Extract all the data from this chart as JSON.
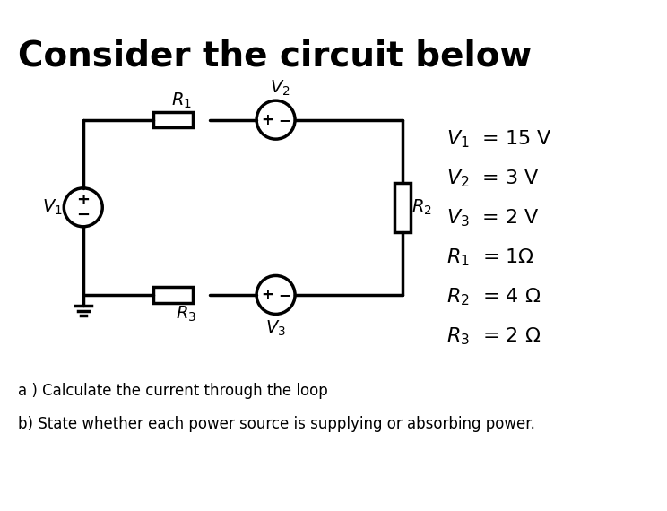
{
  "title": "Consider the circuit below",
  "title_fontsize": 28,
  "title_fontweight": "bold",
  "bg_color": "#ffffff",
  "fig_width": 7.44,
  "fig_height": 5.7,
  "question_a": "a ) Calculate the current through the loop",
  "question_b": "b) State whether each power source is supplying or absorbing power.",
  "legend_lines": [
    "V₁ = 15 V",
    "V₂ = 3 V",
    "V₃ = 2 V",
    "R₁ = 1Ω",
    "R₂ = 4 Ω",
    "R₃ = 2 Ω"
  ]
}
